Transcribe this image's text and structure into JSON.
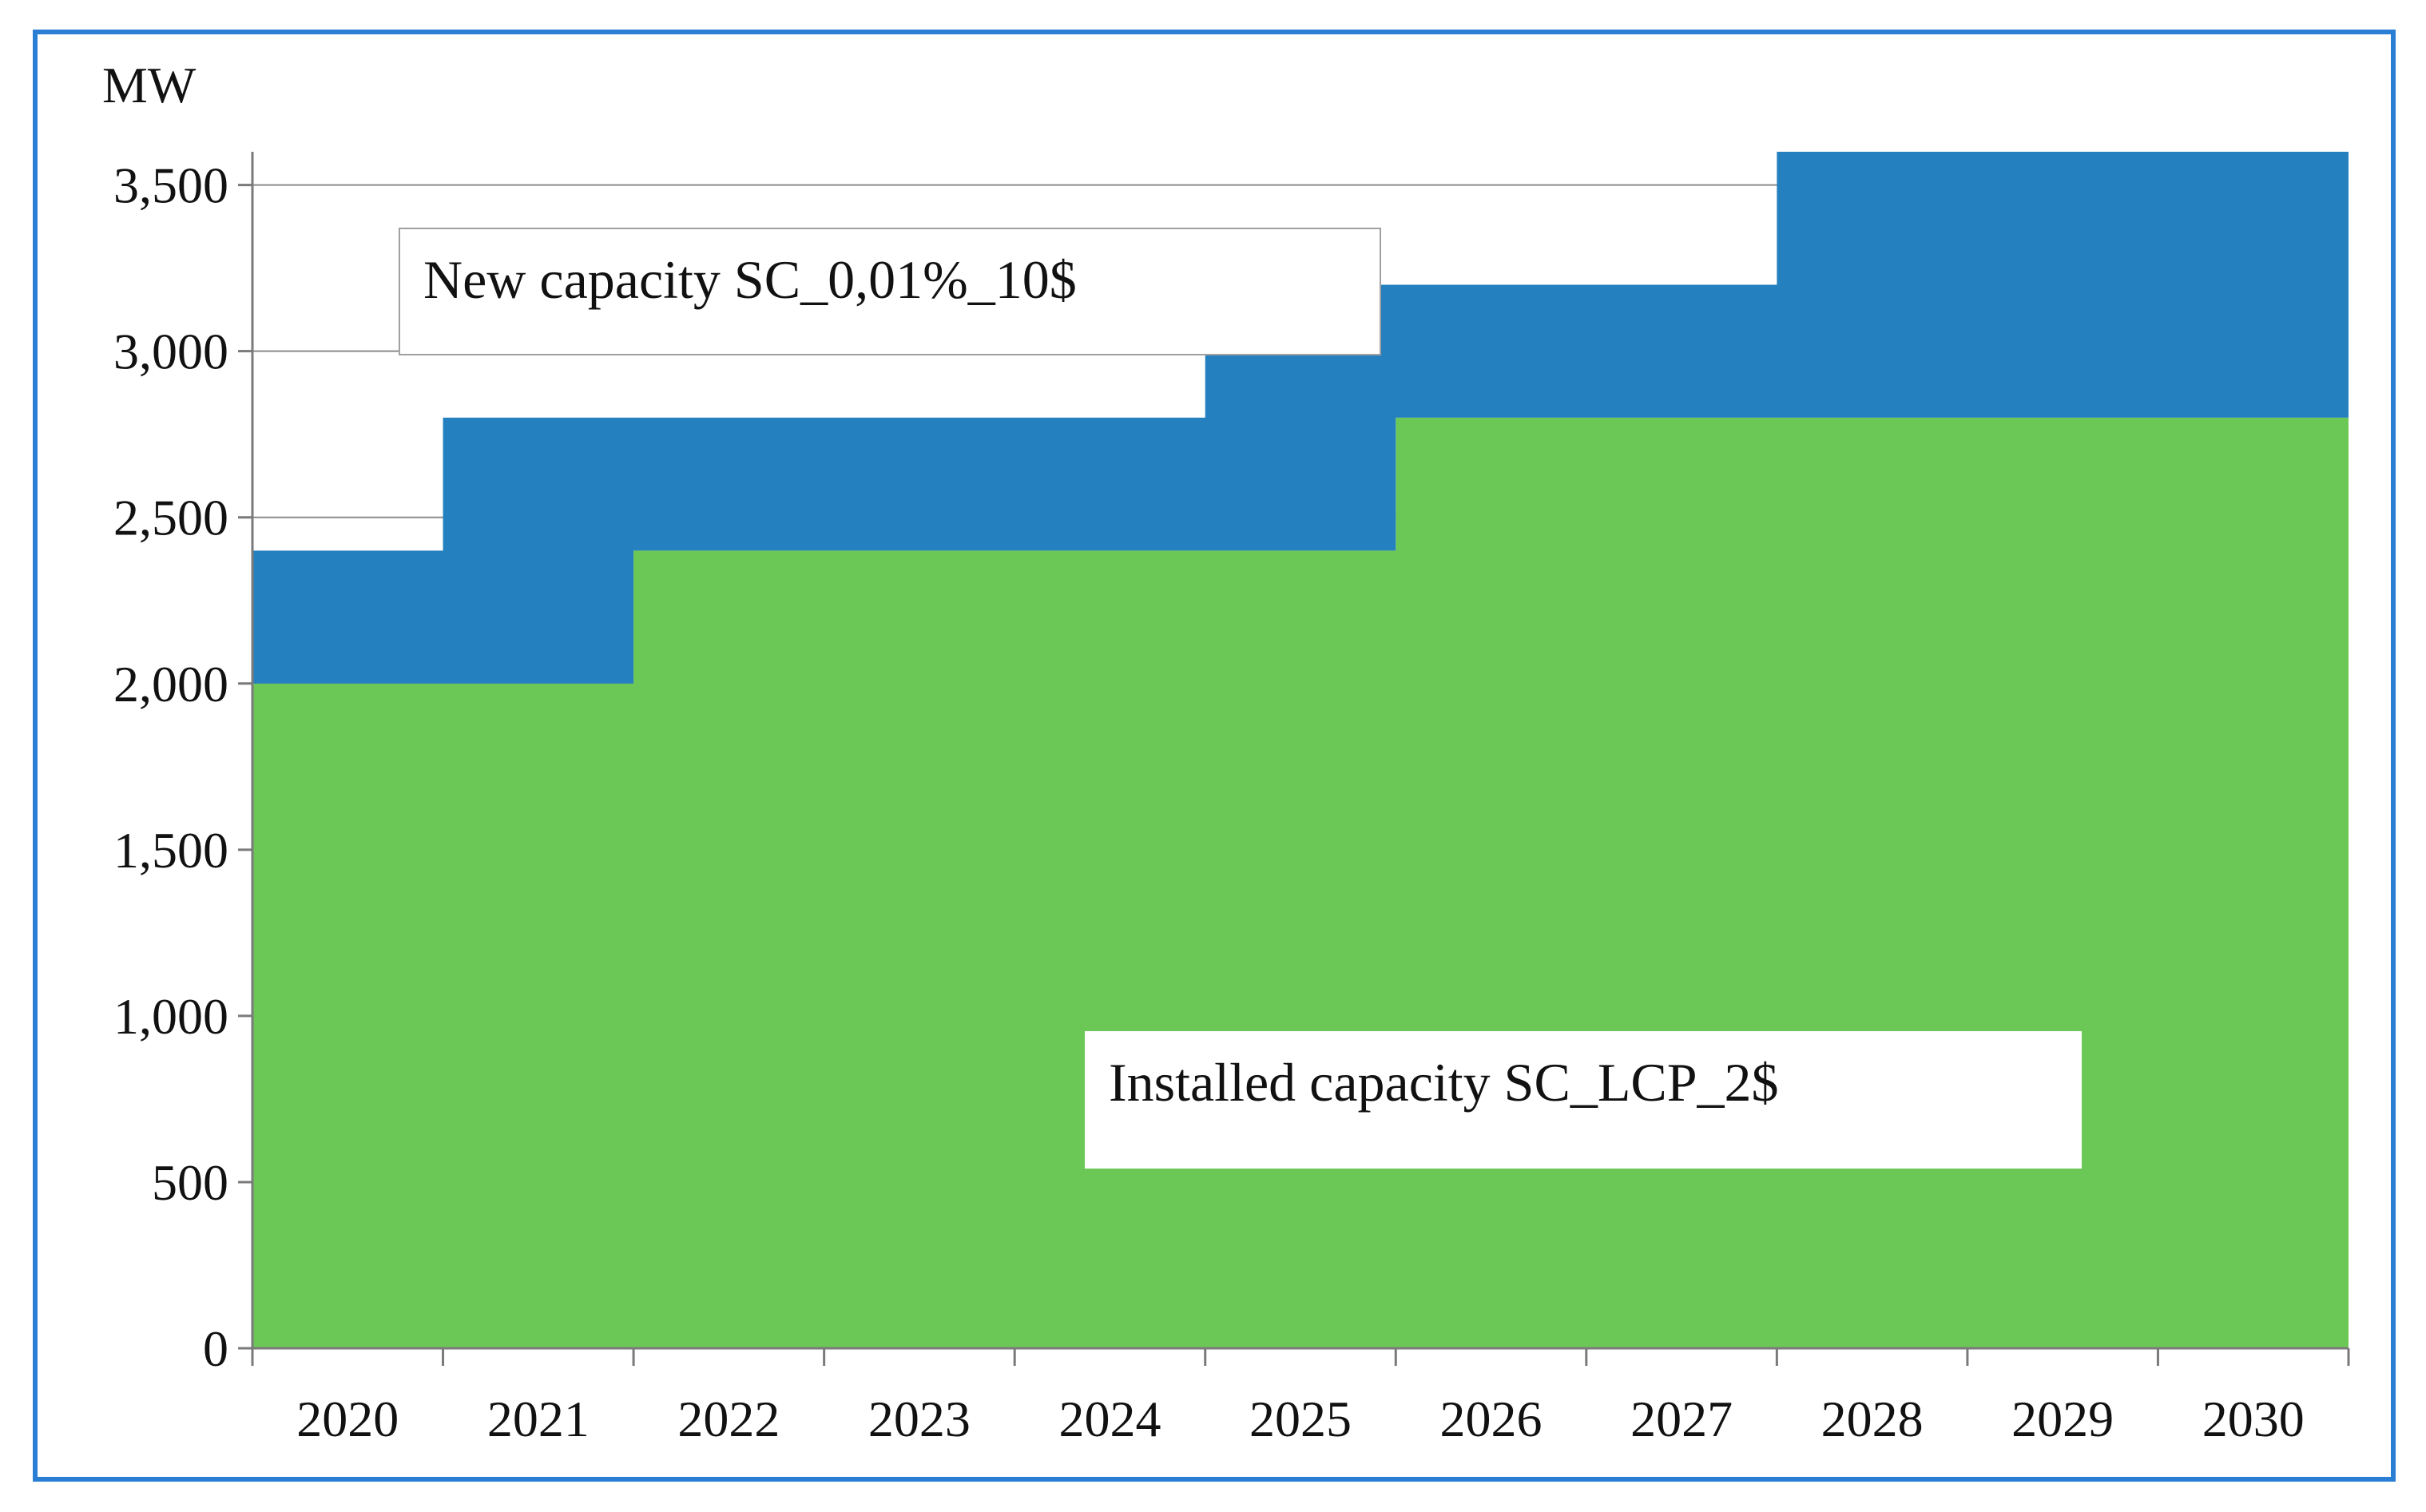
{
  "chart_data": {
    "type": "area",
    "stacked": true,
    "step": true,
    "x": [
      2020,
      2021,
      2022,
      2023,
      2024,
      2025,
      2026,
      2027,
      2028,
      2029,
      2030
    ],
    "x_tick_labels": [
      "2020",
      "2021",
      "2022",
      "2023",
      "2024",
      "2025",
      "2026",
      "2027",
      "2028",
      "2029",
      "2030"
    ],
    "series": [
      {
        "name": "Installed capacity SC_LCP_2$",
        "color": "#6cc856",
        "values": [
          2000,
          2000,
          2400,
          2400,
          2400,
          2400,
          2800,
          2800,
          2800,
          2800,
          2800
        ]
      },
      {
        "name": "New capacity SC_0,01%_10$",
        "color": "#2580bf",
        "values": [
          400,
          800,
          400,
          400,
          400,
          800,
          400,
          400,
          800,
          800,
          800
        ]
      }
    ],
    "ylabel": "MW",
    "ylim": [
      0,
      3600
    ],
    "y_ticks": [
      0,
      500,
      1000,
      1500,
      2000,
      2500,
      3000,
      3500
    ],
    "y_tick_labels": [
      "0",
      "500",
      "1,000",
      "1,500",
      "2,000",
      "2,500",
      "3,000",
      "3,500"
    ],
    "grid": true,
    "annotations": [
      {
        "text": "New capacity SC_0,01%_10$",
        "series": "New capacity SC_0,01%_10$"
      },
      {
        "text": "Installed capacity SC_LCP_2$",
        "series": "Installed capacity SC_LCP_2$"
      }
    ],
    "frame_color": "#2a7fd4"
  }
}
